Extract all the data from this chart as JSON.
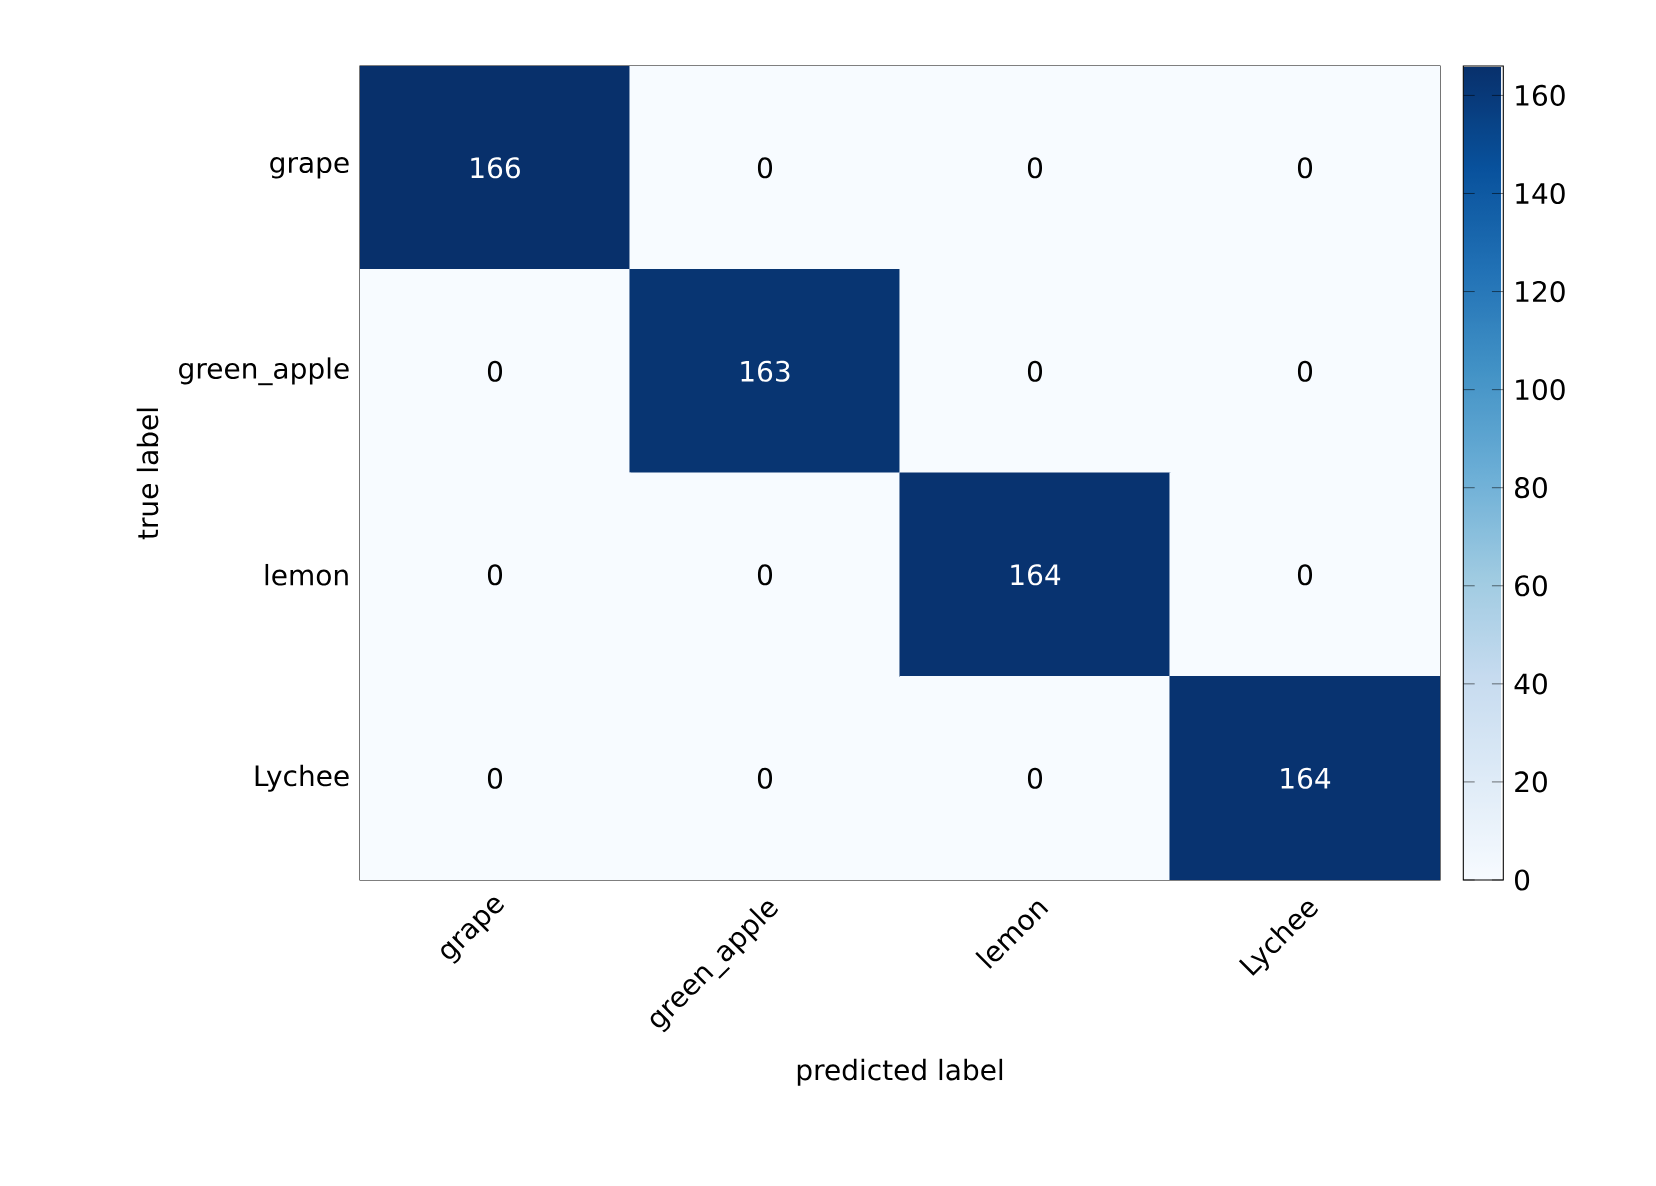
{
  "chart_data": {
    "type": "heatmap",
    "xlabel": "predicted label",
    "ylabel": "true label",
    "categories": [
      "grape",
      "green_apple",
      "lemon",
      "Lychee"
    ],
    "y_categories": [
      "grape",
      "green_apple",
      "lemon",
      "Lychee"
    ],
    "cells": [
      [
        166,
        0,
        0,
        0
      ],
      [
        0,
        163,
        0,
        0
      ],
      [
        0,
        0,
        164,
        0
      ],
      [
        0,
        0,
        0,
        164
      ]
    ],
    "data_labels": true,
    "clim": [
      0,
      166
    ],
    "cticks": [
      0,
      20,
      40,
      60,
      80,
      100,
      120,
      140,
      160
    ]
  }
}
